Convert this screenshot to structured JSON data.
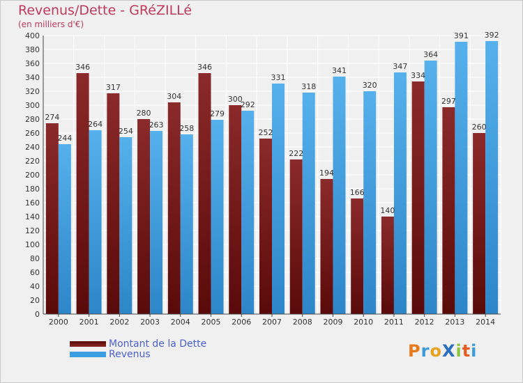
{
  "title": "Revenus/Dette - GRéZILLé",
  "subtitle": "(en milliers d'€)",
  "logo": "ProXiti",
  "colors": {
    "dette": "#7a1a1a",
    "revenus": "#3a9ee0",
    "grid": "#ffffff",
    "bg": "#f0f0f0",
    "text": "#c0395a",
    "legend_text": "#4a5fd9"
  },
  "chart_data": {
    "type": "bar",
    "categories": [
      "2000",
      "2001",
      "2002",
      "2003",
      "2004",
      "2005",
      "2006",
      "2007",
      "2008",
      "2009",
      "2010",
      "2011",
      "2012",
      "2013",
      "2014"
    ],
    "series": [
      {
        "name": "Montant de la Dette",
        "values": [
          274,
          346,
          317,
          280,
          304,
          346,
          300,
          252,
          222,
          194,
          166,
          140,
          334,
          297,
          260
        ]
      },
      {
        "name": "Revenus",
        "values": [
          244,
          264,
          254,
          263,
          258,
          279,
          292,
          331,
          318,
          341,
          320,
          347,
          364,
          391,
          392
        ]
      }
    ],
    "ylim": [
      0,
      400
    ],
    "ytick_step": 20,
    "grid": true,
    "legend_position": "bottom-left"
  }
}
